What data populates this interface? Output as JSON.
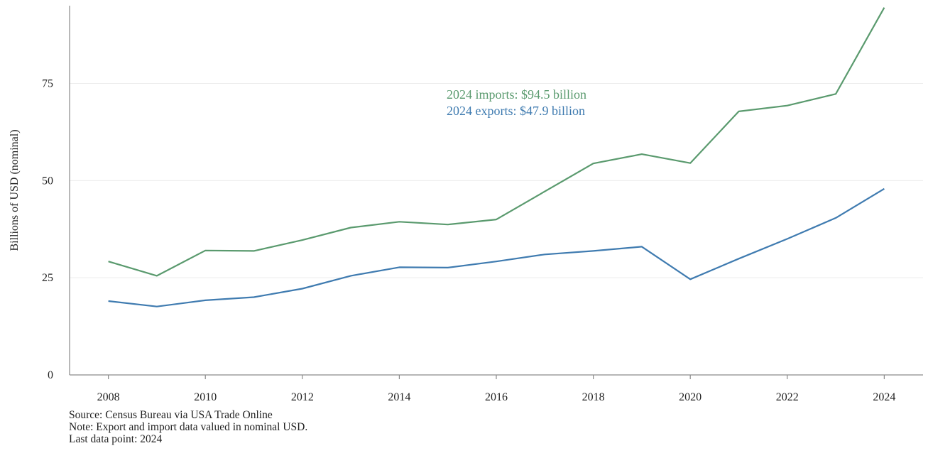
{
  "chart_data": {
    "type": "line",
    "title": "",
    "xlabel": "",
    "ylabel": "Billions of USD (nominal)",
    "x": [
      2008,
      2009,
      2010,
      2011,
      2012,
      2013,
      2014,
      2015,
      2016,
      2017,
      2018,
      2019,
      2020,
      2021,
      2022,
      2023,
      2024
    ],
    "x_ticks": [
      "2008",
      "2010",
      "2012",
      "2014",
      "2016",
      "2018",
      "2020",
      "2022",
      "2024"
    ],
    "y_ticks": [
      "0",
      "25",
      "50",
      "75"
    ],
    "xlim": [
      2007.2,
      2024.8
    ],
    "ylim": [
      0,
      95
    ],
    "grid": "horizontal",
    "series": [
      {
        "key": "imports",
        "color": "#5a9a6e",
        "values": [
          29.2,
          25.5,
          32.0,
          31.9,
          34.7,
          37.9,
          39.4,
          38.7,
          40.0,
          47.2,
          54.4,
          56.8,
          54.5,
          67.8,
          69.3,
          72.3,
          94.5
        ]
      },
      {
        "key": "exports",
        "color": "#3f7bb0",
        "values": [
          19.0,
          17.6,
          19.2,
          20.0,
          22.2,
          25.5,
          27.7,
          27.6,
          29.2,
          31.0,
          31.9,
          33.0,
          24.6,
          29.9,
          35.0,
          40.4,
          47.9
        ]
      }
    ],
    "annotations": [
      {
        "text": "2024 imports: $94.5 billion",
        "series": "imports"
      },
      {
        "text": "2024 exports: $47.9 billion",
        "series": "exports"
      }
    ]
  },
  "footnotes": {
    "source": "Source: Census Bureau via USA Trade Online",
    "note": "Note: Export and import data valued in nominal USD.",
    "last_point": "Last data point: 2024"
  }
}
